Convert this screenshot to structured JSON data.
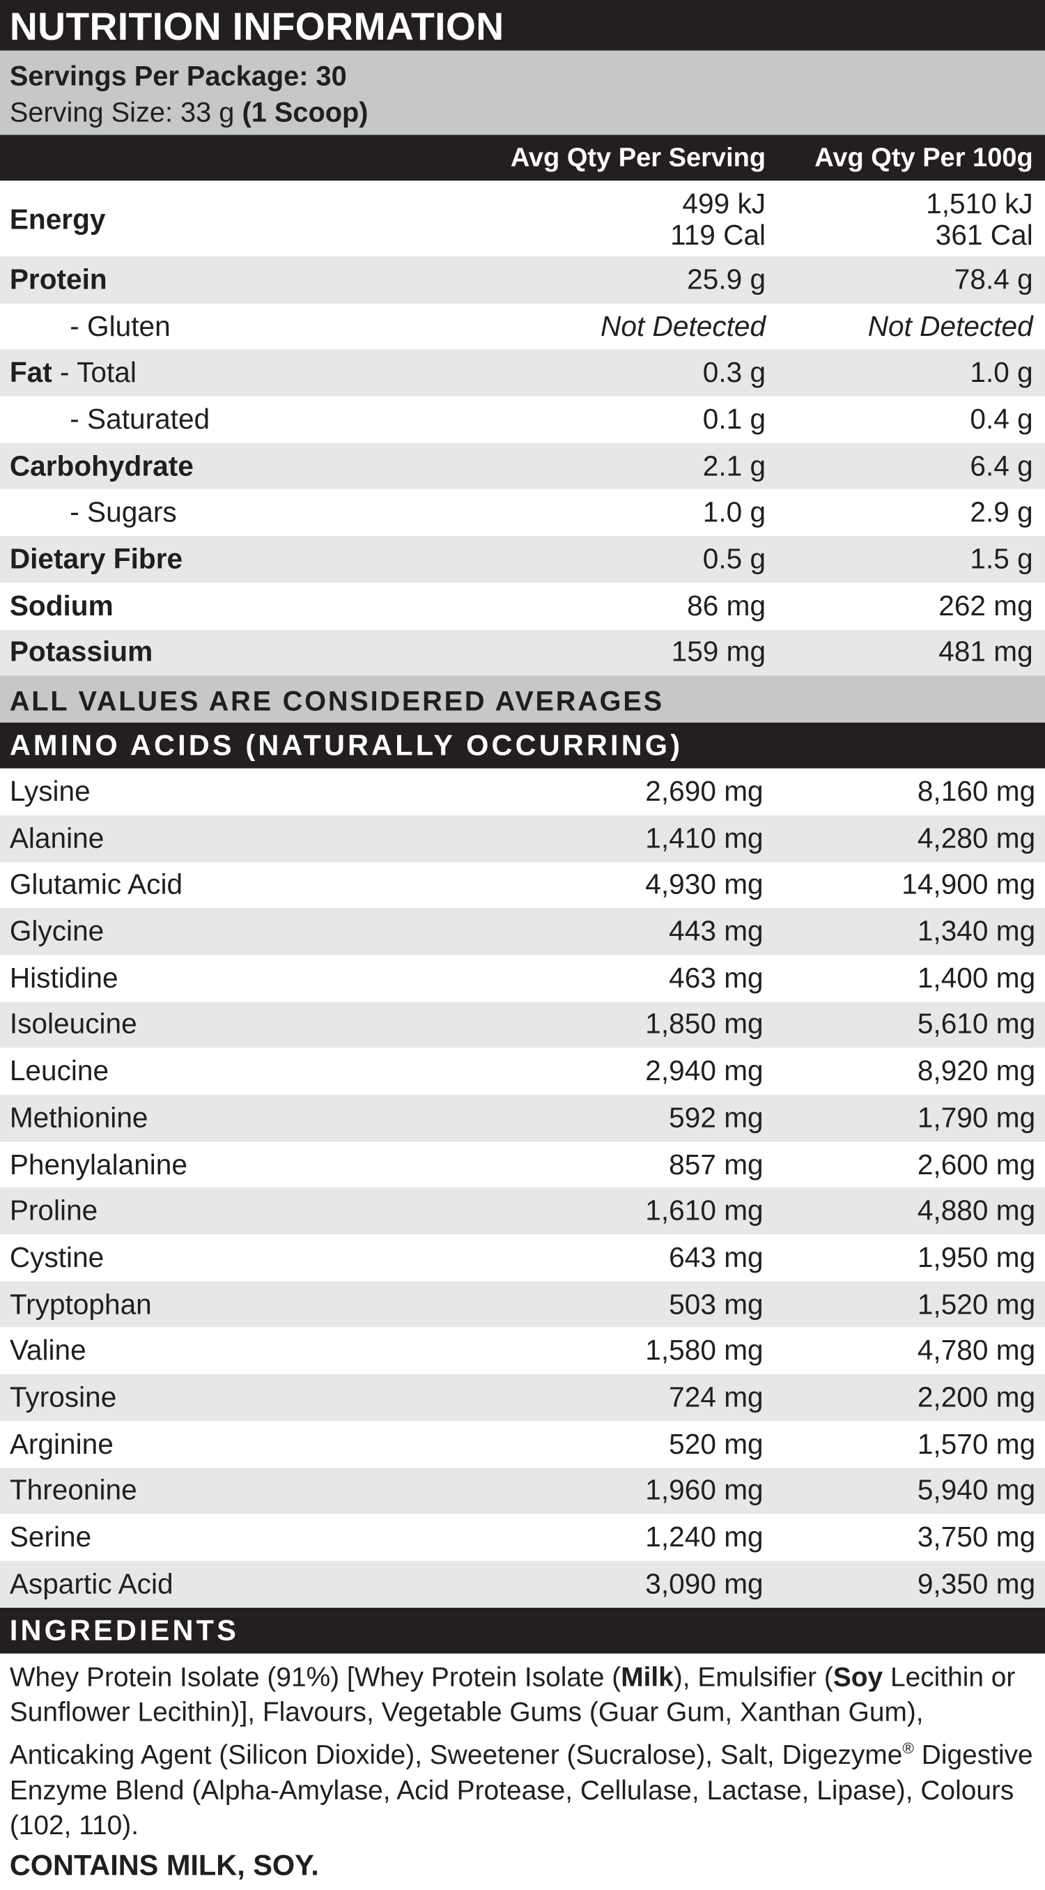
{
  "title": "NUTRITION INFORMATION",
  "servings_per_package": "Servings Per Package: 30",
  "serving_size": "Serving Size: 33 g",
  "serving_size_note": "(1 Scoop)",
  "columns": [
    "Avg Qty Per Serving",
    "Avg Qty Per 100g"
  ],
  "nutrition": [
    {
      "label_bold": "Energy",
      "serving": [
        "499 kJ",
        "119 Cal"
      ],
      "per_100g": [
        "1,510 kJ",
        "361 Cal"
      ]
    },
    {
      "label_bold": "Protein",
      "serving": "25.9 g",
      "per_100g": "78.4 g"
    },
    {
      "label": "- Gluten",
      "indent": true,
      "italic": true,
      "serving": "Not Detected",
      "per_100g": "Not Detected"
    },
    {
      "label_bold": "Fat",
      "label": " - Total",
      "serving": "0.3 g",
      "per_100g": "1.0 g"
    },
    {
      "label": "- Saturated",
      "indent": true,
      "serving": "0.1 g",
      "per_100g": "0.4 g"
    },
    {
      "label_bold": "Carbohydrate",
      "serving": "2.1 g",
      "per_100g": "6.4 g"
    },
    {
      "label": "- Sugars",
      "indent": true,
      "serving": "1.0 g",
      "per_100g": "2.9 g"
    },
    {
      "label_bold": "Dietary Fibre",
      "serving": "0.5 g",
      "per_100g": "1.5 g"
    },
    {
      "label_bold": "Sodium",
      "serving": "86 mg",
      "per_100g": "262 mg"
    },
    {
      "label_bold": "Potassium",
      "serving": "159 mg",
      "per_100g": "481 mg"
    }
  ],
  "averages_note": "ALL VALUES ARE CONSIDERED AVERAGES",
  "amino_title": "AMINO ACIDS (NATURALLY OCCURRING)",
  "amino_acids": [
    [
      "Lysine",
      "2,690 mg",
      "8,160 mg"
    ],
    [
      "Alanine",
      "1,410 mg",
      "4,280 mg"
    ],
    [
      "Glutamic Acid",
      "4,930 mg",
      "14,900 mg"
    ],
    [
      "Glycine",
      "443 mg",
      "1,340 mg"
    ],
    [
      "Histidine",
      "463 mg",
      "1,400 mg"
    ],
    [
      "Isoleucine",
      "1,850 mg",
      "5,610 mg"
    ],
    [
      "Leucine",
      "2,940 mg",
      "8,920 mg"
    ],
    [
      "Methionine",
      "592 mg",
      "1,790 mg"
    ],
    [
      "Phenylalanine",
      "857 mg",
      "2,600 mg"
    ],
    [
      "Proline",
      "1,610 mg",
      "4,880 mg"
    ],
    [
      "Cystine",
      "643 mg",
      "1,950 mg"
    ],
    [
      "Tryptophan",
      "503 mg",
      "1,520 mg"
    ],
    [
      "Valine",
      "1,580 mg",
      "4,780 mg"
    ],
    [
      "Tyrosine",
      "724 mg",
      "2,200 mg"
    ],
    [
      "Arginine",
      "520 mg",
      "1,570 mg"
    ],
    [
      "Threonine",
      "1,960 mg",
      "5,940 mg"
    ],
    [
      "Serine",
      "1,240 mg",
      "3,750 mg"
    ],
    [
      "Aspartic Acid",
      "3,090 mg",
      "9,350 mg"
    ]
  ],
  "ingredients_title": "INGREDIENTS",
  "ingredients": [
    {
      "text": "Whey Protein Isolate (91%) [Whey Protein Isolate ("
    },
    {
      "text": "Milk",
      "bold": true
    },
    {
      "text": "), Emulsifier ("
    },
    {
      "text": "Soy",
      "bold": true
    },
    {
      "text": " Lecithin or Sunflower Lecithin)], Flavours, Vegetable Gums (Guar Gum, Xanthan Gum), Anticaking Agent (Silicon Dioxide), Sweetener (Sucralose), Salt, Digezyme"
    },
    {
      "text": "®",
      "sup": true
    },
    {
      "text": " Digestive Enzyme Blend (Alpha-Amylase, Acid Protease, Cellulase, Lactase, Lipase), Colours (102, 110)."
    }
  ],
  "contains": "CONTAINS MILK, SOY."
}
